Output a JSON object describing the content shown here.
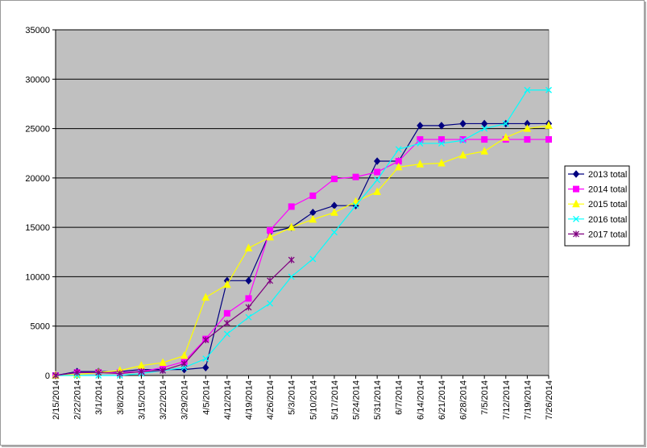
{
  "chart_data": {
    "type": "line",
    "title": "",
    "xlabel": "",
    "ylabel": "",
    "ylim": [
      0,
      35000
    ],
    "yticks": [
      0,
      5000,
      10000,
      15000,
      20000,
      25000,
      30000,
      35000
    ],
    "grid": "horizontal",
    "legend_position": "right",
    "background": "#c0c0c0",
    "categories": [
      "2/15/2014",
      "2/22/2014",
      "3/1/2014",
      "3/8/2014",
      "3/15/2014",
      "3/22/2014",
      "3/29/2014",
      "4/5/2014",
      "4/12/2014",
      "4/19/2014",
      "4/26/2014",
      "5/3/2014",
      "5/10/2014",
      "5/17/2014",
      "5/24/2014",
      "5/31/2014",
      "6/7/2014",
      "6/14/2014",
      "6/21/2014",
      "6/28/2014",
      "7/5/2014",
      "7/12/2014",
      "7/19/2014",
      "7/26/2014"
    ],
    "series": [
      {
        "name": "2013 total",
        "color": "#000080",
        "marker": "diamond",
        "values": [
          0,
          400,
          400,
          400,
          600,
          600,
          600,
          800,
          9600,
          9600,
          14500,
          15000,
          16500,
          17200,
          17200,
          21700,
          21700,
          25300,
          25300,
          25500,
          25500,
          25500,
          25500,
          25500
        ]
      },
      {
        "name": "2014 total",
        "color": "#ff00ff",
        "marker": "square",
        "values": [
          0,
          300,
          300,
          300,
          400,
          800,
          1400,
          3700,
          6300,
          7800,
          14700,
          17100,
          18200,
          19900,
          20100,
          20600,
          21700,
          23900,
          23900,
          23900,
          23900,
          23900,
          23900,
          23900
        ]
      },
      {
        "name": "2015 total",
        "color": "#ffff00",
        "marker": "triangle",
        "values": [
          0,
          100,
          300,
          500,
          1000,
          1300,
          2000,
          7900,
          9200,
          12900,
          14000,
          15000,
          15800,
          16500,
          17600,
          18600,
          21100,
          21400,
          21500,
          22300,
          22700,
          24100,
          25000,
          25300
        ]
      },
      {
        "name": "2016 total",
        "color": "#00ffff",
        "marker": "x",
        "values": [
          0,
          0,
          0,
          0,
          200,
          500,
          800,
          1700,
          4200,
          5900,
          7300,
          10000,
          11800,
          14500,
          17200,
          19800,
          22900,
          23500,
          23500,
          23800,
          25000,
          25500,
          28900,
          28900
        ]
      },
      {
        "name": "2017 total",
        "color": "#800080",
        "marker": "star",
        "values": [
          0,
          300,
          300,
          200,
          400,
          500,
          1200,
          3600,
          5300,
          6900,
          9600,
          11700,
          null,
          null,
          null,
          null,
          null,
          null,
          null,
          null,
          null,
          null,
          null,
          null
        ]
      }
    ]
  }
}
